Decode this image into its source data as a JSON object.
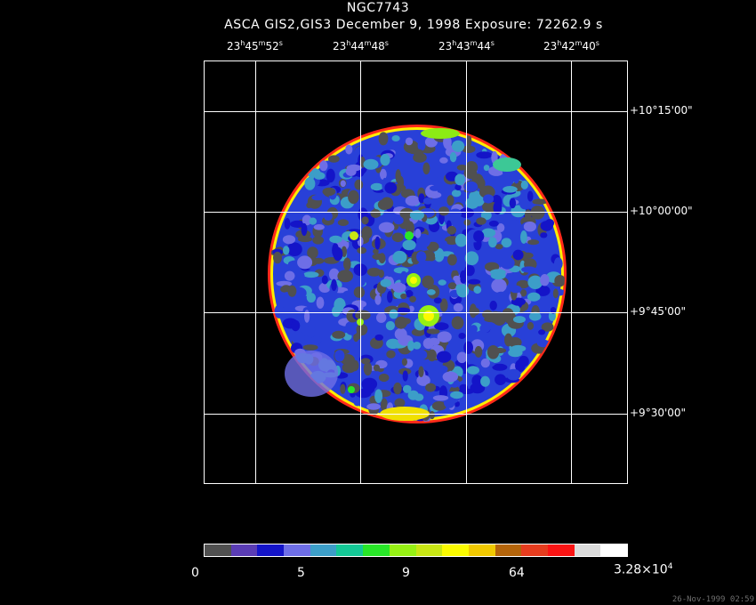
{
  "header": {
    "title": "NGC7743",
    "subtitle": "ASCA GIS2,GIS3 December 9, 1998 Exposure: 72262.9 s"
  },
  "ra_ticks": [
    {
      "h": "23",
      "m": "45",
      "s": "52"
    },
    {
      "h": "23",
      "m": "44",
      "s": "48"
    },
    {
      "h": "23",
      "m": "43",
      "s": "44"
    },
    {
      "h": "23",
      "m": "42",
      "s": "40"
    }
  ],
  "dec_ticks": [
    "+10°15'00\"",
    "+10°00'00\"",
    "+9°45'00\"",
    "+9°30'00\""
  ],
  "colorbar": {
    "colors": [
      "#505050",
      "#5a3cb4",
      "#1414c8",
      "#6e6ee6",
      "#3c9ec8",
      "#14c896",
      "#28e628",
      "#96f014",
      "#c8e614",
      "#fafa00",
      "#f0c800",
      "#b4640a",
      "#e63c1e",
      "#fa1414",
      "#dcdcdc",
      "#ffffff"
    ],
    "labels": [
      "0",
      "5",
      "9",
      "64"
    ],
    "max_label_base": "3.28×10",
    "max_label_exp": "4"
  },
  "footer": "26-Nov-1999 02:59"
}
